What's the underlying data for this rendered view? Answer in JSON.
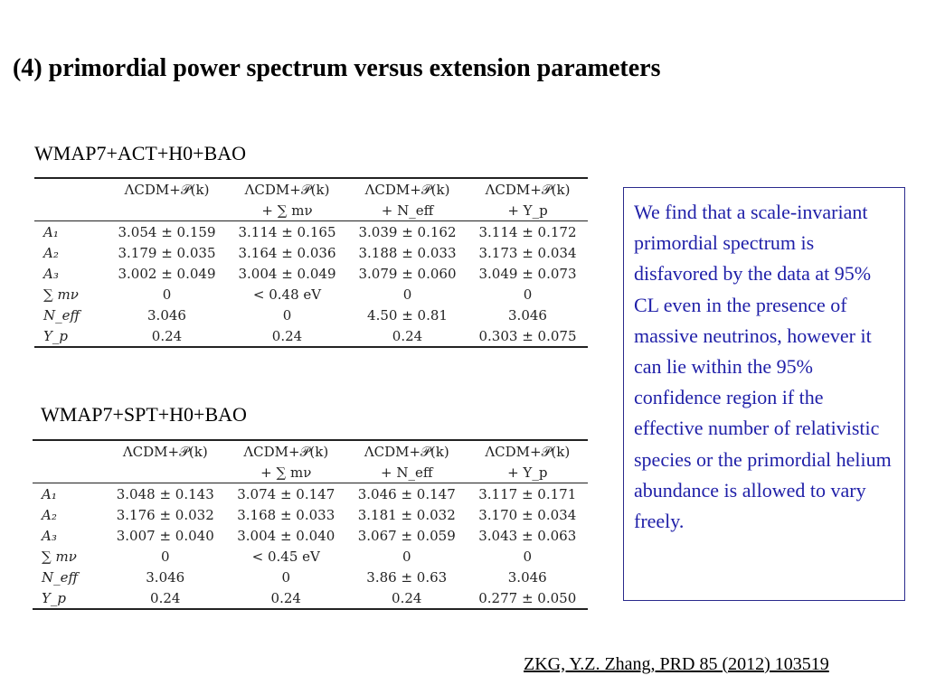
{
  "slide": {
    "title": "(4)  primordial power spectrum versus extension parameters"
  },
  "tables": [
    {
      "label": "WMAP7+ACT+H0+BAO",
      "header_top": [
        "ΛCDM+𝒫(k)",
        "ΛCDM+𝒫(k)",
        "ΛCDM+𝒫(k)",
        "ΛCDM+𝒫(k)"
      ],
      "header_bottom": [
        "",
        "+ ∑ mν",
        "+ N_eff",
        "+ Y_p"
      ],
      "rows": [
        {
          "param": "A₁",
          "values": [
            "3.054 ± 0.159",
            "3.114 ± 0.165",
            "3.039 ± 0.162",
            "3.114 ± 0.172"
          ]
        },
        {
          "param": "A₂",
          "values": [
            "3.179 ± 0.035",
            "3.164 ± 0.036",
            "3.188 ± 0.033",
            "3.173 ± 0.034"
          ]
        },
        {
          "param": "A₃",
          "values": [
            "3.002 ± 0.049",
            "3.004 ± 0.049",
            "3.079 ± 0.060",
            "3.049 ± 0.073"
          ]
        },
        {
          "param": "∑ mν",
          "values": [
            "0",
            "< 0.48 eV",
            "0",
            "0"
          ]
        },
        {
          "param": "N_eff",
          "values": [
            "3.046",
            "0",
            "4.50 ± 0.81",
            "3.046"
          ]
        },
        {
          "param": "Y_p",
          "values": [
            "0.24",
            "0.24",
            "0.24",
            "0.303 ± 0.075"
          ]
        }
      ]
    },
    {
      "label": "WMAP7+SPT+H0+BAO",
      "header_top": [
        "ΛCDM+𝒫(k)",
        "ΛCDM+𝒫(k)",
        "ΛCDM+𝒫(k)",
        "ΛCDM+𝒫(k)"
      ],
      "header_bottom": [
        "",
        "+ ∑ mν",
        "+ N_eff",
        "+ Y_p"
      ],
      "rows": [
        {
          "param": "A₁",
          "values": [
            "3.048 ± 0.143",
            "3.074 ± 0.147",
            "3.046 ± 0.147",
            "3.117 ± 0.171"
          ]
        },
        {
          "param": "A₂",
          "values": [
            "3.176 ± 0.032",
            "3.168 ± 0.033",
            "3.181 ± 0.032",
            "3.170 ± 0.034"
          ]
        },
        {
          "param": "A₃",
          "values": [
            "3.007 ± 0.040",
            "3.004 ± 0.040",
            "3.067 ± 0.059",
            "3.043 ± 0.063"
          ]
        },
        {
          "param": "∑ mν",
          "values": [
            "0",
            "< 0.45 eV",
            "0",
            "0"
          ]
        },
        {
          "param": "N_eff",
          "values": [
            "3.046",
            "0",
            "3.86 ± 0.63",
            "3.046"
          ]
        },
        {
          "param": "Y_p",
          "values": [
            "0.24",
            "0.24",
            "0.24",
            "0.277 ± 0.050"
          ]
        }
      ]
    }
  ],
  "note": {
    "text": "We find that a scale-invariant primordial spectrum is disfavored by the data at 95% CL even in the presence of massive neutrinos, however it can lie within the 95% confidence region if the effective number of relativistic species or the primordial helium abundance is allowed to vary freely."
  },
  "citation": {
    "text": "ZKG, Y.Z. Zhang, PRD 85 (2012) 103519"
  },
  "colors": {
    "note_text": "#1f1fa8",
    "note_border": "#2a2a8c"
  }
}
